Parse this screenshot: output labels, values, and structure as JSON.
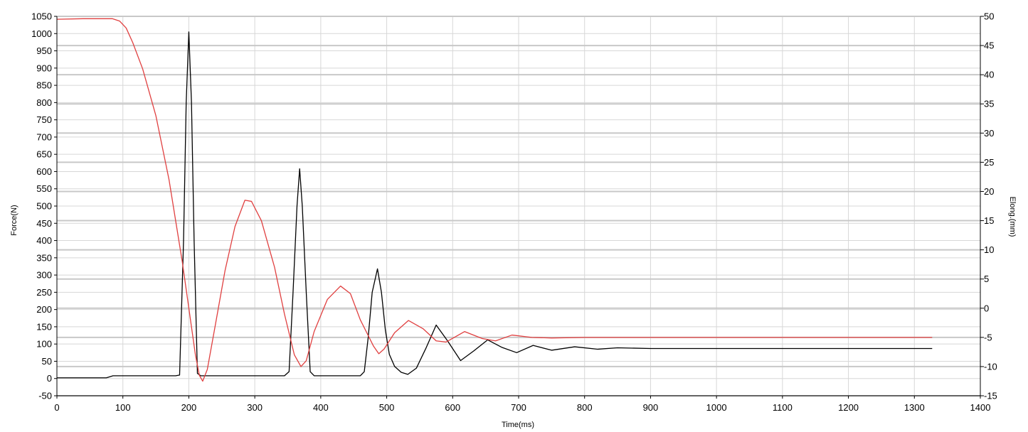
{
  "chart_data": {
    "type": "line",
    "xlabel": "Time(ms)",
    "ylabel_left": "Force(N)",
    "ylabel_right": "Elong.(mm)",
    "xlim": [
      0,
      1400
    ],
    "ylim_left": [
      -50,
      1050
    ],
    "ylim_right": [
      -15,
      50
    ],
    "x_ticks": [
      0,
      100,
      200,
      300,
      400,
      500,
      600,
      700,
      800,
      900,
      1000,
      1100,
      1200,
      1300,
      1400
    ],
    "x_tick_labels": [
      "0",
      "100",
      "200",
      "300",
      "400",
      "500",
      "600",
      "700",
      "800",
      "900",
      "1000",
      "1100",
      "1200",
      "1300",
      "1400"
    ],
    "y_left_ticks": [
      -50,
      0,
      50,
      100,
      150,
      200,
      250,
      300,
      350,
      400,
      450,
      500,
      550,
      600,
      650,
      700,
      750,
      800,
      850,
      900,
      950,
      1000,
      1050
    ],
    "y_left_tick_labels": [
      "-50",
      "0",
      "50",
      "100",
      "150",
      "200",
      "250",
      "300",
      "350",
      "400",
      "450",
      "500",
      "550",
      "600",
      "650",
      "700",
      "750",
      "800",
      "850",
      "900",
      "950",
      "1000",
      "1050"
    ],
    "y_right_ticks": [
      -15,
      -10,
      -5,
      0,
      5,
      10,
      15,
      20,
      25,
      30,
      35,
      40,
      45,
      50
    ],
    "y_right_tick_labels": [
      "-15",
      "-10",
      "-5",
      "0",
      "5",
      "10",
      "15",
      "20",
      "25",
      "30",
      "35",
      "40",
      "45",
      "50"
    ],
    "grid": true,
    "series": [
      {
        "axis": "left",
        "color": "#000000",
        "points": [
          [
            0,
            2
          ],
          [
            75,
            2
          ],
          [
            85,
            8
          ],
          [
            100,
            8
          ],
          [
            150,
            8
          ],
          [
            180,
            8
          ],
          [
            186,
            10
          ],
          [
            192,
            400
          ],
          [
            196,
            800
          ],
          [
            200,
            1005
          ],
          [
            204,
            800
          ],
          [
            208,
            400
          ],
          [
            213,
            15
          ],
          [
            218,
            8
          ],
          [
            300,
            8
          ],
          [
            345,
            8
          ],
          [
            352,
            20
          ],
          [
            358,
            250
          ],
          [
            364,
            500
          ],
          [
            368,
            608
          ],
          [
            372,
            500
          ],
          [
            378,
            250
          ],
          [
            384,
            20
          ],
          [
            390,
            8
          ],
          [
            460,
            8
          ],
          [
            466,
            20
          ],
          [
            472,
            120
          ],
          [
            478,
            250
          ],
          [
            486,
            318
          ],
          [
            492,
            250
          ],
          [
            498,
            140
          ],
          [
            504,
            70
          ],
          [
            512,
            35
          ],
          [
            522,
            18
          ],
          [
            532,
            12
          ],
          [
            545,
            30
          ],
          [
            560,
            90
          ],
          [
            575,
            155
          ],
          [
            592,
            110
          ],
          [
            612,
            52
          ],
          [
            632,
            80
          ],
          [
            653,
            112
          ],
          [
            675,
            90
          ],
          [
            697,
            75
          ],
          [
            722,
            96
          ],
          [
            750,
            82
          ],
          [
            785,
            92
          ],
          [
            820,
            85
          ],
          [
            850,
            89
          ],
          [
            900,
            87
          ],
          [
            1000,
            87
          ],
          [
            1100,
            87
          ],
          [
            1200,
            87
          ],
          [
            1327,
            87
          ]
        ]
      },
      {
        "axis": "right",
        "color": "#e04040",
        "points": [
          [
            0,
            49.5
          ],
          [
            40,
            49.6
          ],
          [
            84,
            49.6
          ],
          [
            95,
            49.2
          ],
          [
            105,
            48.0
          ],
          [
            115,
            45.5
          ],
          [
            130,
            41.0
          ],
          [
            150,
            33.0
          ],
          [
            170,
            22.0
          ],
          [
            190,
            8.0
          ],
          [
            200,
            0.0
          ],
          [
            210,
            -8.0
          ],
          [
            216,
            -11.5
          ],
          [
            221,
            -12.5
          ],
          [
            228,
            -10.5
          ],
          [
            240,
            -3.0
          ],
          [
            255,
            6.5
          ],
          [
            270,
            14.0
          ],
          [
            285,
            18.5
          ],
          [
            295,
            18.3
          ],
          [
            310,
            15.0
          ],
          [
            330,
            7.0
          ],
          [
            345,
            -1.0
          ],
          [
            360,
            -8.0
          ],
          [
            370,
            -10.0
          ],
          [
            378,
            -9.0
          ],
          [
            390,
            -4.0
          ],
          [
            410,
            1.5
          ],
          [
            430,
            3.8
          ],
          [
            445,
            2.5
          ],
          [
            460,
            -2.0
          ],
          [
            480,
            -6.5
          ],
          [
            488,
            -7.8
          ],
          [
            496,
            -7.0
          ],
          [
            512,
            -4.2
          ],
          [
            533,
            -2.1
          ],
          [
            555,
            -3.5
          ],
          [
            575,
            -5.6
          ],
          [
            590,
            -5.8
          ],
          [
            618,
            -4.0
          ],
          [
            645,
            -5.2
          ],
          [
            665,
            -5.6
          ],
          [
            690,
            -4.6
          ],
          [
            720,
            -5.0
          ],
          [
            750,
            -5.1
          ],
          [
            800,
            -5.0
          ],
          [
            900,
            -5.0
          ],
          [
            1000,
            -5.0
          ],
          [
            1100,
            -5.0
          ],
          [
            1200,
            -5.0
          ],
          [
            1327,
            -5.0
          ]
        ]
      }
    ]
  }
}
